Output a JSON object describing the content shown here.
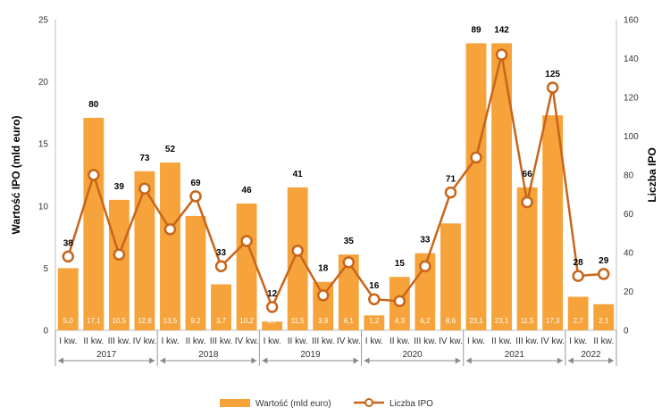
{
  "chart_data": {
    "type": "bar",
    "title": "",
    "ylabel_left": "Wartość IPO (mld euro)",
    "ylabel_right": "Liczba IPO",
    "ylim_left": [
      0,
      25
    ],
    "ylim_right": [
      0,
      160
    ],
    "yticks_left": [
      "0",
      "5",
      "10",
      "15",
      "20",
      "25"
    ],
    "yticks_right": [
      "0",
      "20",
      "40",
      "60",
      "80",
      "100",
      "120",
      "140",
      "160"
    ],
    "categories": [
      "I kw.",
      "II kw.",
      "III kw.",
      "IV kw.",
      "I kw.",
      "II kw.",
      "III kw.",
      "IV kw.",
      "I kw.",
      "II kw.",
      "III kw.",
      "IV kw.",
      "I kw.",
      "II kw.",
      "III kw.",
      "IV kw.",
      "I kw.",
      "II kw.",
      "III kw.",
      "IV kw.",
      "I kw.",
      "II kw."
    ],
    "years": [
      {
        "label": "2017",
        "count": 4
      },
      {
        "label": "2018",
        "count": 4
      },
      {
        "label": "2019",
        "count": 4
      },
      {
        "label": "2020",
        "count": 4
      },
      {
        "label": "2021",
        "count": 4
      },
      {
        "label": "2022",
        "count": 2
      }
    ],
    "series": [
      {
        "name": "Wartość (mld euro)",
        "kind": "bar",
        "axis": "left",
        "color": "#F5A33A",
        "values": [
          5.0,
          17.1,
          10.5,
          12.8,
          13.5,
          9.2,
          3.7,
          10.2,
          0.7,
          11.5,
          3.9,
          6.1,
          1.2,
          4.3,
          6.2,
          8.6,
          23.1,
          23.1,
          11.5,
          17.3,
          2.7,
          2.1
        ],
        "labels": [
          "5,0",
          "17,1",
          "10,5",
          "12,8",
          "13,5",
          "9,2",
          "3,7",
          "10,2",
          "0,7",
          "11,5",
          "3,9",
          "6,1",
          "1,2",
          "4,3",
          "6,2",
          "8,6",
          "23,1",
          "23,1",
          "11,5",
          "17,3",
          "2,7",
          "2,1"
        ]
      },
      {
        "name": "Liczba IPO",
        "kind": "line",
        "axis": "right",
        "color": "#C8651B",
        "values": [
          38,
          80,
          39,
          73,
          52,
          69,
          33,
          46,
          12,
          41,
          18,
          35,
          16,
          15,
          33,
          71,
          89,
          142,
          66,
          125,
          28,
          29
        ],
        "labels": [
          "38",
          "80",
          "39",
          "73",
          "52",
          "69",
          "33",
          "46",
          "12",
          "41",
          "18",
          "35",
          "16",
          "15",
          "33",
          "71",
          "89",
          "142",
          "66",
          "125",
          "28",
          "29"
        ]
      }
    ],
    "legend_position": "bottom",
    "grid": false
  }
}
